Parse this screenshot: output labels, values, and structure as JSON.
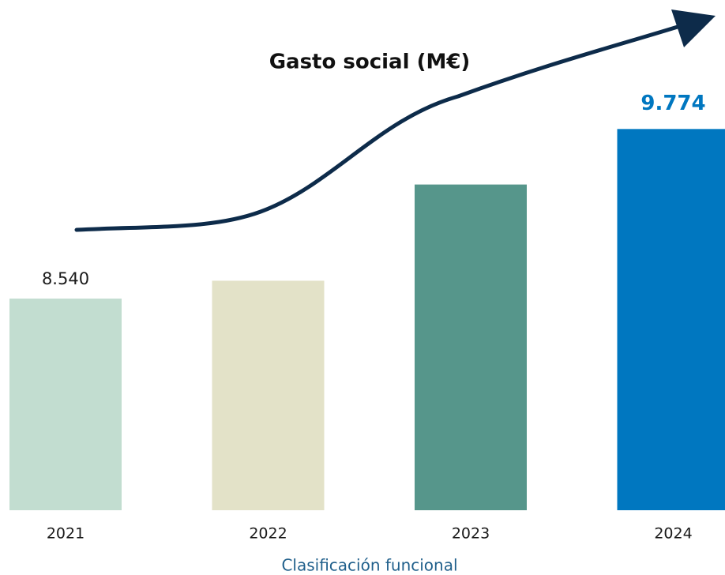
{
  "chart_data": {
    "type": "bar",
    "title": "Gasto social (M€)",
    "x_label": "Clasificación funcional",
    "categories": [
      "2021",
      "2022",
      "2023",
      "2024"
    ],
    "values": [
      8540,
      8670,
      9370,
      9774
    ],
    "value_labels": [
      "8.540",
      null,
      null,
      "9.774"
    ],
    "colors": [
      "#c2ddd0",
      "#e3e2c8",
      "#56968b",
      "#0077c0"
    ],
    "ylim": [
      7000,
      10000
    ]
  }
}
